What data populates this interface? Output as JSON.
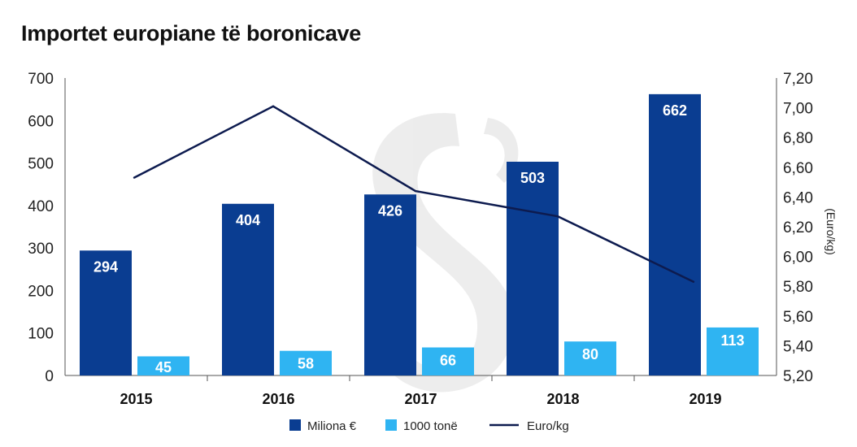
{
  "chart_data": {
    "type": "bar",
    "title": "Importet europiane të boronicave",
    "categories": [
      "2015",
      "2016",
      "2017",
      "2018",
      "2019"
    ],
    "series": [
      {
        "name": "Miliona €",
        "kind": "bar",
        "axis": "left",
        "color": "#0a3d91",
        "values": [
          294,
          404,
          426,
          503,
          662
        ]
      },
      {
        "name": "1000 tonë",
        "kind": "bar",
        "axis": "left",
        "color": "#2fb4f2",
        "values": [
          45,
          58,
          66,
          80,
          113
        ]
      },
      {
        "name": "Euro/kg",
        "kind": "line",
        "axis": "right",
        "color": "#0d1b4f",
        "values": [
          6.53,
          7.01,
          6.44,
          6.27,
          5.83
        ]
      }
    ],
    "y_left": {
      "min": 0,
      "max": 700,
      "ticks": [
        "0",
        "100",
        "200",
        "300",
        "400",
        "500",
        "600",
        "700"
      ]
    },
    "y_right": {
      "label": "(Euro/kg)",
      "min": 5.2,
      "max": 7.2,
      "ticks": [
        "5,20",
        "5,40",
        "5,60",
        "5,80",
        "6,00",
        "6,20",
        "6,40",
        "6,60",
        "6,80",
        "7,00",
        "7,20"
      ]
    },
    "grid": false,
    "legend_position": "bottom"
  }
}
